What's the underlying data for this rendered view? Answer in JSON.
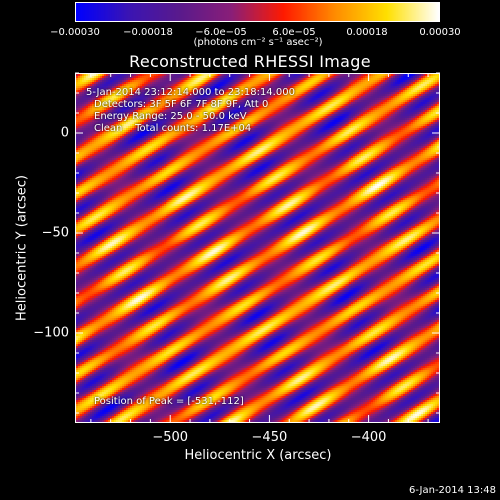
{
  "chart_data": {
    "type": "heatmap",
    "title": "Reconstructed RHESSI Image",
    "xlabel": "Heliocentric X (arcsec)",
    "ylabel": "Heliocentric Y (arcsec)",
    "xlim": [
      -548,
      -364
    ],
    "ylim": [
      -145,
      30
    ],
    "x_ticks": [
      -500,
      -450,
      -400
    ],
    "x_tick_labels": [
      "−500",
      "−450",
      "−400"
    ],
    "y_ticks": [
      0,
      -50,
      -100
    ],
    "y_tick_labels": [
      "0",
      "−50",
      "−100"
    ],
    "colorbar": {
      "range": [
        -0.0003,
        0.0003
      ],
      "ticks": [
        -0.0003,
        -0.00018,
        -6e-05,
        6e-05,
        0.00018,
        0.0003
      ],
      "tick_labels": [
        "−0.00030",
        "−0.00018",
        "−6.0e−05",
        "6.0e−05",
        "0.00018",
        "0.00030"
      ],
      "units_label": "(photons cm⁻² s⁻¹ asec⁻²)",
      "colors": [
        "#0000ff",
        "#3a14b4",
        "#5a1a8c",
        "#8a1e78",
        "#ff1a00",
        "#ff8c00",
        "#ffe000",
        "#ffffff"
      ]
    },
    "annotations": {
      "time_range": "5-Jan-2014 23:12:14.000 to 23:18:14.000",
      "detectors": "Detectors: 3F 5F 6F 7F 8F 9F, Att 0",
      "energy": "Energy Range: 25.0 - 50.0 keV",
      "method": "Clean    Total counts: 1.17E+04",
      "peak": "Position of Peak = [-531,-112]"
    },
    "peak_position": [
      -531,
      -112
    ],
    "pattern": "diagonal fringe bands running from upper-left to lower-right"
  },
  "footer": {
    "timestamp": "6-Jan-2014 13:48"
  }
}
